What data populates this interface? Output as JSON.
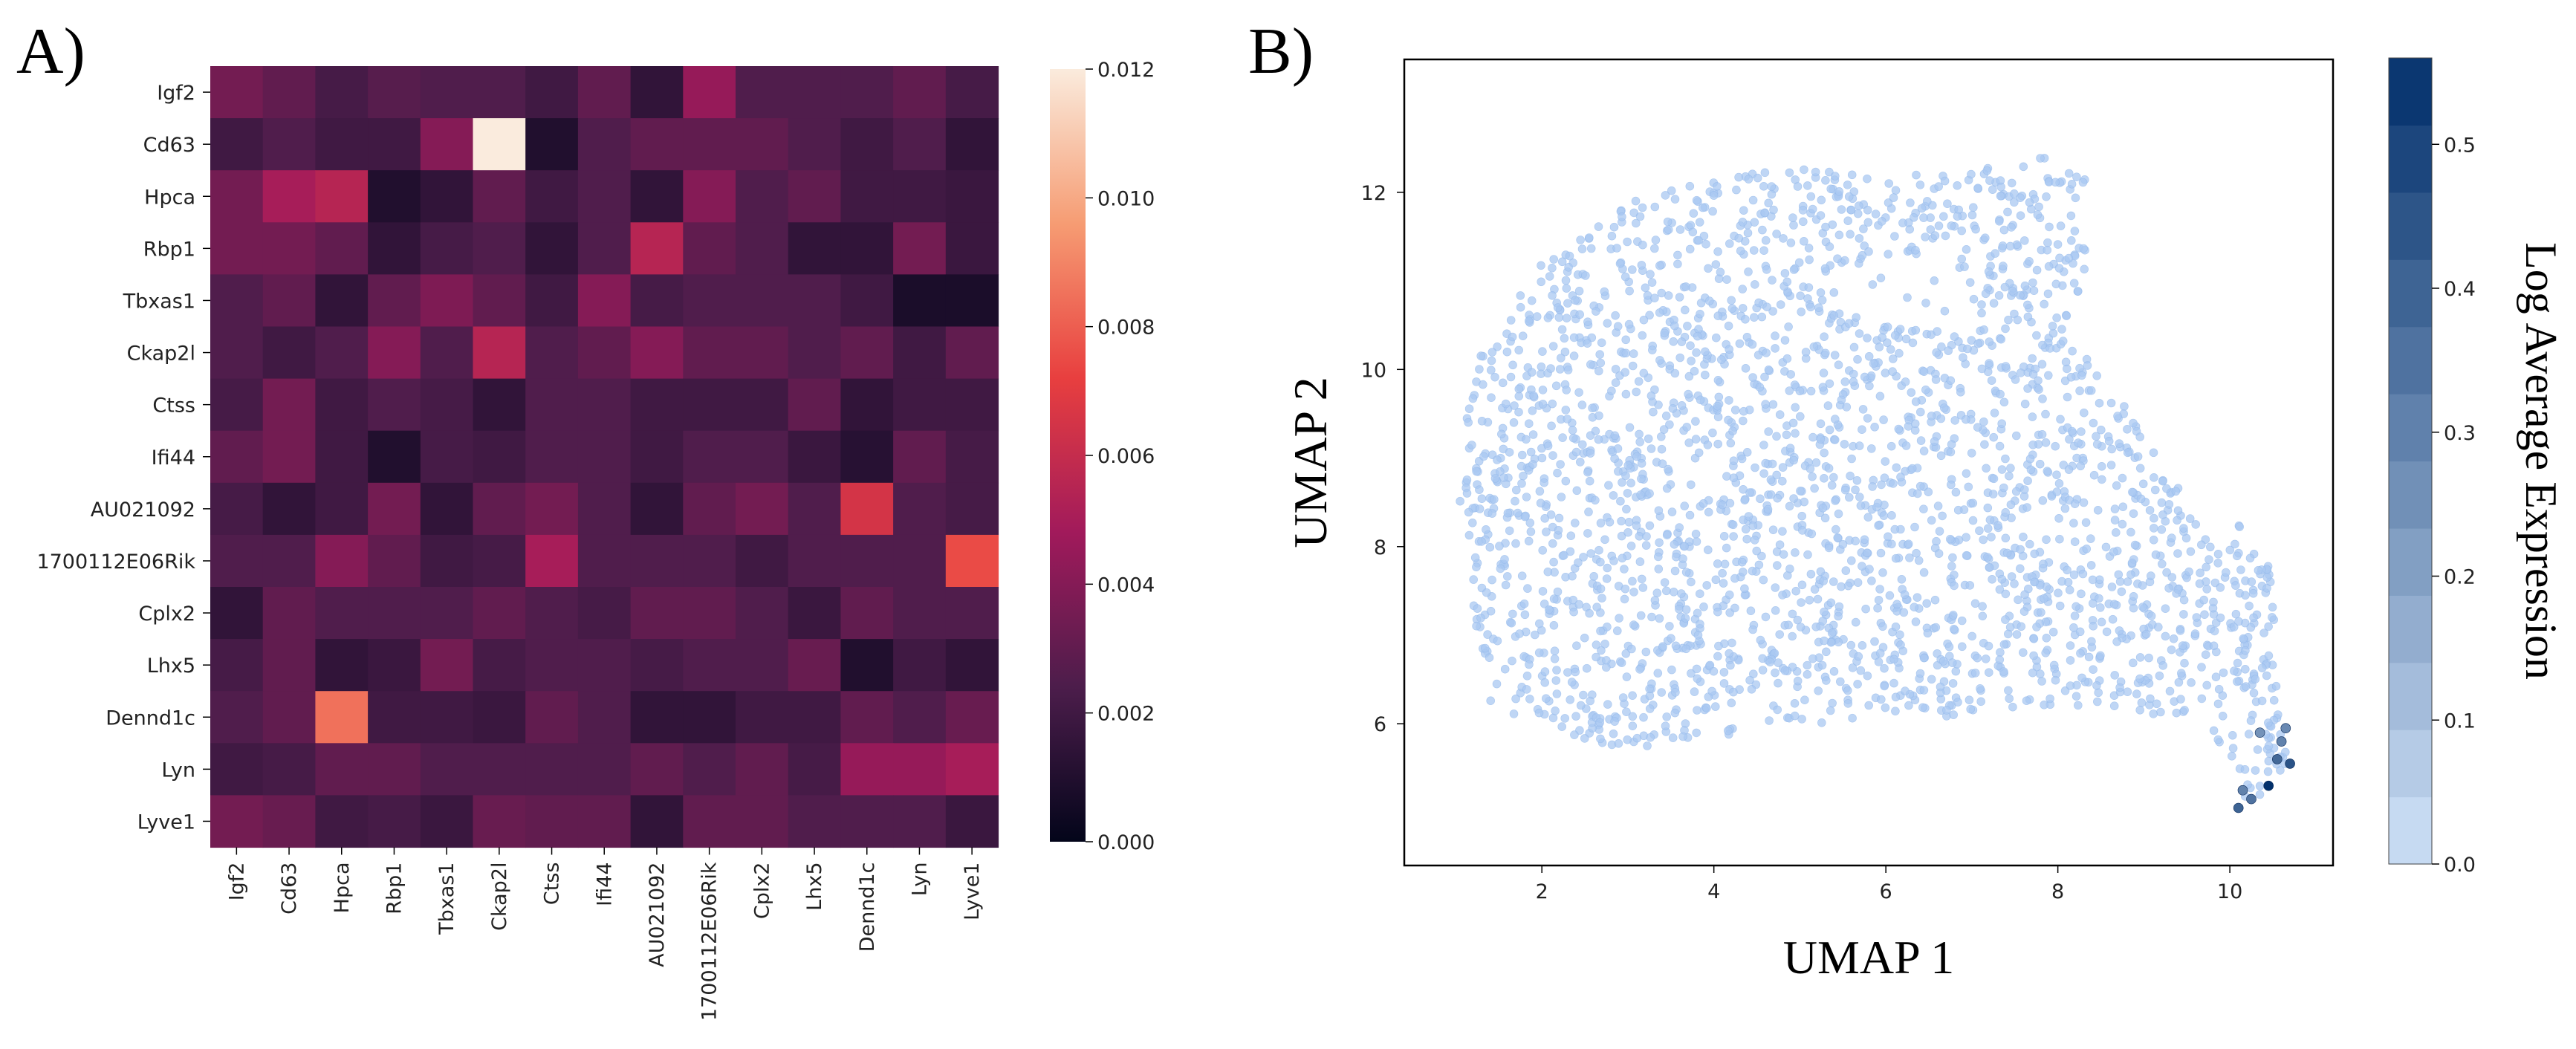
{
  "panels": {
    "a_label": "A)",
    "b_label": "B)"
  },
  "chart_data": [
    {
      "type": "heatmap",
      "panel": "A)",
      "title": "",
      "xlabel": "",
      "ylabel": "",
      "rows": [
        "Igf2",
        "Cd63",
        "Hpca",
        "Rbp1",
        "Tbxas1",
        "Ckap2l",
        "Ctss",
        "Ifi44",
        "AU021092",
        "1700112E06Rik",
        "Cplx2",
        "Lhx5",
        "Dennd1c",
        "Lyn",
        "Lyve1"
      ],
      "cols": [
        "Igf2",
        "Cd63",
        "Hpca",
        "Rbp1",
        "Tbxas1",
        "Ckap2l",
        "Ctss",
        "Ifi44",
        "AU021092",
        "1700112E06Rik",
        "Cplx2",
        "Lhx5",
        "Dennd1c",
        "Lyn",
        "Lyve1"
      ],
      "values": [
        [
          0.0035,
          0.003,
          0.0022,
          0.0027,
          0.0025,
          0.0025,
          0.002,
          0.003,
          0.0015,
          0.0045,
          0.0025,
          0.0025,
          0.0025,
          0.003,
          0.0022
        ],
        [
          0.002,
          0.0025,
          0.002,
          0.002,
          0.004,
          0.012,
          0.001,
          0.0025,
          0.003,
          0.003,
          0.003,
          0.0025,
          0.002,
          0.0025,
          0.0015
        ],
        [
          0.0035,
          0.005,
          0.0055,
          0.001,
          0.0015,
          0.003,
          0.002,
          0.0025,
          0.0015,
          0.004,
          0.0025,
          0.003,
          0.002,
          0.002,
          0.0018
        ],
        [
          0.0035,
          0.0035,
          0.003,
          0.0015,
          0.0022,
          0.0025,
          0.0015,
          0.0025,
          0.0055,
          0.003,
          0.0025,
          0.0015,
          0.0015,
          0.0035,
          0.0018
        ],
        [
          0.0025,
          0.003,
          0.0015,
          0.003,
          0.0038,
          0.003,
          0.002,
          0.004,
          0.0022,
          0.0025,
          0.0025,
          0.0025,
          0.002,
          0.0008,
          0.0008
        ],
        [
          0.0025,
          0.002,
          0.0025,
          0.004,
          0.0025,
          0.0055,
          0.0025,
          0.003,
          0.004,
          0.003,
          0.003,
          0.0025,
          0.003,
          0.002,
          0.003
        ],
        [
          0.0022,
          0.0035,
          0.002,
          0.0025,
          0.0022,
          0.0015,
          0.0025,
          0.0025,
          0.002,
          0.002,
          0.002,
          0.003,
          0.0015,
          0.002,
          0.002
        ],
        [
          0.003,
          0.0035,
          0.002,
          0.001,
          0.0022,
          0.002,
          0.0025,
          0.0025,
          0.002,
          0.0025,
          0.0025,
          0.0018,
          0.0012,
          0.003,
          0.0022
        ],
        [
          0.0022,
          0.0015,
          0.002,
          0.0035,
          0.0015,
          0.003,
          0.0035,
          0.0025,
          0.0015,
          0.003,
          0.0035,
          0.0025,
          0.0065,
          0.0025,
          0.0022
        ],
        [
          0.0025,
          0.0025,
          0.004,
          0.003,
          0.002,
          0.0022,
          0.005,
          0.0025,
          0.0025,
          0.0025,
          0.002,
          0.0025,
          0.0025,
          0.0025,
          0.0075
        ],
        [
          0.0015,
          0.003,
          0.0025,
          0.0025,
          0.0025,
          0.003,
          0.0025,
          0.0022,
          0.003,
          0.003,
          0.0025,
          0.0018,
          0.003,
          0.0025,
          0.0025
        ],
        [
          0.0022,
          0.003,
          0.0015,
          0.0018,
          0.0035,
          0.0022,
          0.0025,
          0.0025,
          0.0022,
          0.0025,
          0.0025,
          0.0032,
          0.001,
          0.002,
          0.0015
        ],
        [
          0.0025,
          0.003,
          0.0085,
          0.002,
          0.002,
          0.0018,
          0.003,
          0.0025,
          0.0015,
          0.0015,
          0.002,
          0.002,
          0.003,
          0.0025,
          0.0032
        ],
        [
          0.002,
          0.0022,
          0.003,
          0.003,
          0.0025,
          0.0025,
          0.0025,
          0.0025,
          0.003,
          0.0025,
          0.003,
          0.0022,
          0.0045,
          0.0045,
          0.005
        ],
        [
          0.0035,
          0.0032,
          0.002,
          0.0022,
          0.0018,
          0.0032,
          0.003,
          0.003,
          0.0015,
          0.003,
          0.003,
          0.0025,
          0.0025,
          0.0025,
          0.0018
        ]
      ],
      "colorbar": {
        "min": 0.0,
        "max": 0.012,
        "ticks": [
          "0.000",
          "0.002",
          "0.004",
          "0.006",
          "0.008",
          "0.010",
          "0.012"
        ],
        "colormap": "rocket",
        "colors": [
          "#03051a",
          "#4c1d4b",
          "#a11a5b",
          "#e83f3f",
          "#f69c73",
          "#faebdd"
        ]
      }
    },
    {
      "type": "scatter",
      "panel": "B)",
      "title": "",
      "xlabel": "UMAP 1",
      "ylabel": "UMAP 2",
      "xlim": [
        0.4,
        11.2
      ],
      "ylim": [
        4.4,
        13.5
      ],
      "xticks": [
        "2",
        "4",
        "6",
        "8",
        "10"
      ],
      "yticks": [
        "6",
        "8",
        "10",
        "12"
      ],
      "point_color": "#a9c8f2",
      "colorbar": {
        "label": "Log Average Expression",
        "min": 0.0,
        "max": 0.56,
        "ticks": [
          "0.0",
          "0.1",
          "0.2",
          "0.3",
          "0.4",
          "0.5"
        ],
        "levels": 12,
        "colors": [
          "#cfe1f8",
          "#02306b"
        ]
      },
      "highlight_points": [
        {
          "x": 10.45,
          "y": 5.3,
          "value": 0.56
        },
        {
          "x": 10.1,
          "y": 5.05,
          "value": 0.4
        },
        {
          "x": 10.25,
          "y": 5.15,
          "value": 0.35
        },
        {
          "x": 10.7,
          "y": 5.55,
          "value": 0.45
        },
        {
          "x": 10.6,
          "y": 5.8,
          "value": 0.3
        },
        {
          "x": 10.55,
          "y": 5.6,
          "value": 0.38
        },
        {
          "x": 10.35,
          "y": 5.9,
          "value": 0.25
        },
        {
          "x": 10.65,
          "y": 5.95,
          "value": 0.28
        },
        {
          "x": 10.15,
          "y": 5.25,
          "value": 0.3
        }
      ]
    }
  ]
}
